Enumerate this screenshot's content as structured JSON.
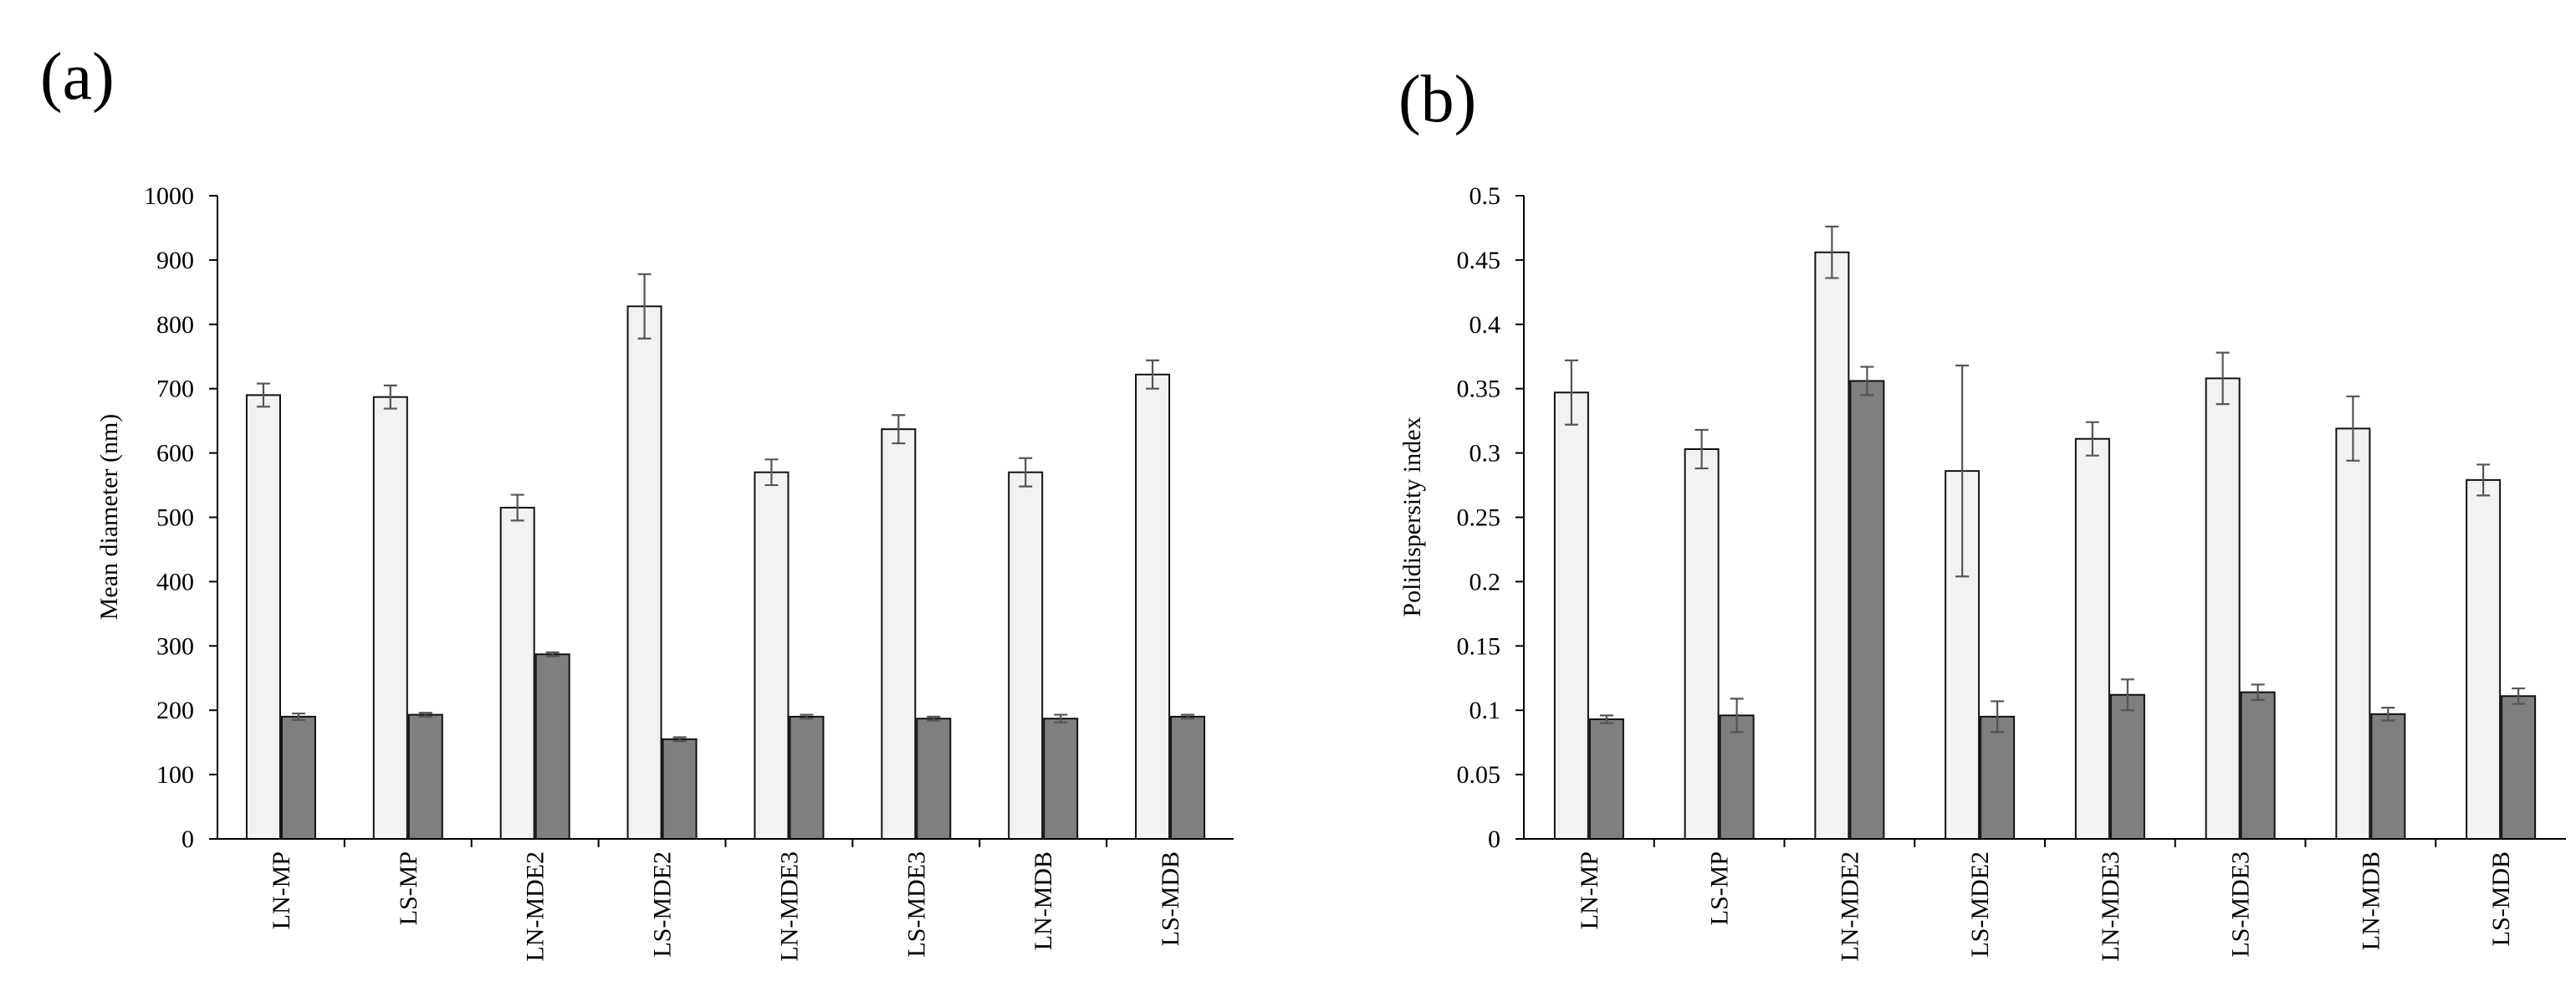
{
  "chart_data": [
    {
      "panel": "(a)",
      "type": "bar",
      "title": "",
      "xlabel": "",
      "ylabel": "Mean diameter (nm)",
      "ylim": [
        0,
        1000
      ],
      "yticks": [
        "0",
        "100",
        "200",
        "300",
        "400",
        "500",
        "600",
        "700",
        "800",
        "900",
        "1000"
      ],
      "ytick_values": [
        0,
        100,
        200,
        300,
        400,
        500,
        600,
        700,
        800,
        900,
        1000
      ],
      "grid": false,
      "categories": [
        "LN-MP",
        "LS-MP",
        "LN-MDE2",
        "LS-MDE2",
        "LN-MDE3",
        "LS-MDE3",
        "LN-MDB",
        "LS-MDB"
      ],
      "series": [
        {
          "name": "",
          "color": "#f2f2f2",
          "values": [
            690,
            687,
            515,
            828,
            570,
            637,
            570,
            722
          ],
          "errors": [
            18,
            18,
            20,
            50,
            20,
            22,
            22,
            22
          ]
        },
        {
          "name": "",
          "color": "#7f7f7f",
          "values": [
            190,
            193,
            287,
            155,
            190,
            187,
            187,
            190
          ],
          "errors": [
            5,
            3,
            3,
            3,
            3,
            3,
            6,
            3
          ]
        }
      ]
    },
    {
      "panel": "(b)",
      "type": "bar",
      "title": "",
      "xlabel": "",
      "ylabel": "Polidispersity index",
      "ylim": [
        0,
        0.5
      ],
      "yticks": [
        "0",
        "0.05",
        "0.1",
        "0.15",
        "0.2",
        "0.25",
        "0.3",
        "0.35",
        "0.4",
        "0.45",
        "0.5"
      ],
      "ytick_values": [
        0,
        0.05,
        0.1,
        0.15,
        0.2,
        0.25,
        0.3,
        0.35,
        0.4,
        0.45,
        0.5
      ],
      "grid": false,
      "categories": [
        "LN-MP",
        "LS-MP",
        "LN-MDE2",
        "LS-MDE2",
        "LN-MDE3",
        "LS-MDE3",
        "LN-MDB",
        "LS-MDB"
      ],
      "series": [
        {
          "name": "",
          "color": "#f2f2f2",
          "values": [
            0.347,
            0.303,
            0.456,
            0.286,
            0.311,
            0.358,
            0.319,
            0.279
          ],
          "errors": [
            0.025,
            0.015,
            0.02,
            0.082,
            0.013,
            0.02,
            0.025,
            0.012
          ]
        },
        {
          "name": "",
          "color": "#7f7f7f",
          "values": [
            0.093,
            0.096,
            0.356,
            0.095,
            0.112,
            0.114,
            0.097,
            0.111
          ],
          "errors": [
            0.003,
            0.013,
            0.011,
            0.012,
            0.012,
            0.006,
            0.005,
            0.006
          ]
        }
      ]
    }
  ]
}
